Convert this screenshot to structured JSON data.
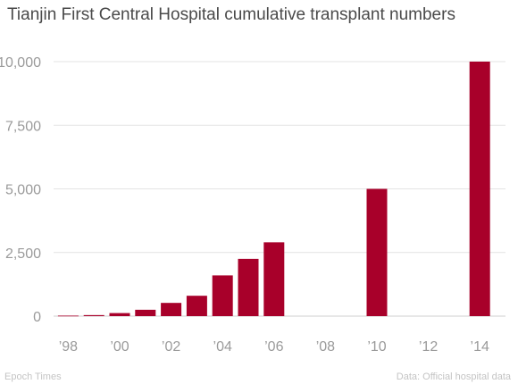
{
  "chart_data": {
    "type": "bar",
    "title": "Tianjin First Central Hospital cumulative transplant numbers",
    "xlabel": "",
    "ylabel": "",
    "categories": [
      "1998",
      "1999",
      "2000",
      "2001",
      "2002",
      "2003",
      "2004",
      "2005",
      "2006",
      "2007",
      "2008",
      "2009",
      "2010",
      "2011",
      "2012",
      "2013",
      "2014"
    ],
    "values": [
      20,
      40,
      120,
      250,
      520,
      800,
      1600,
      2250,
      2900,
      0,
      0,
      0,
      5000,
      0,
      0,
      0,
      10000
    ],
    "x_ticks": [
      {
        "label": "’98",
        "category": "1998"
      },
      {
        "label": "’00",
        "category": "2000"
      },
      {
        "label": "’02",
        "category": "2002"
      },
      {
        "label": "’04",
        "category": "2004"
      },
      {
        "label": "’06",
        "category": "2006"
      },
      {
        "label": "’08",
        "category": "2008"
      },
      {
        "label": "’10",
        "category": "2010"
      },
      {
        "label": "’12",
        "category": "2012"
      },
      {
        "label": "’14",
        "category": "2014"
      }
    ],
    "y_ticks": [
      {
        "value": 0,
        "label": "0"
      },
      {
        "value": 2500,
        "label": "2,500"
      },
      {
        "value": 5000,
        "label": "5,000"
      },
      {
        "value": 7500,
        "label": "7,500"
      },
      {
        "value": 10000,
        "label": "10,000"
      }
    ],
    "ylim": [
      0,
      10000
    ],
    "grid": true,
    "bar_color": "#a8002a"
  },
  "footer": {
    "source_left": "Epoch Times",
    "source_right": "Data: Official hospital data"
  }
}
